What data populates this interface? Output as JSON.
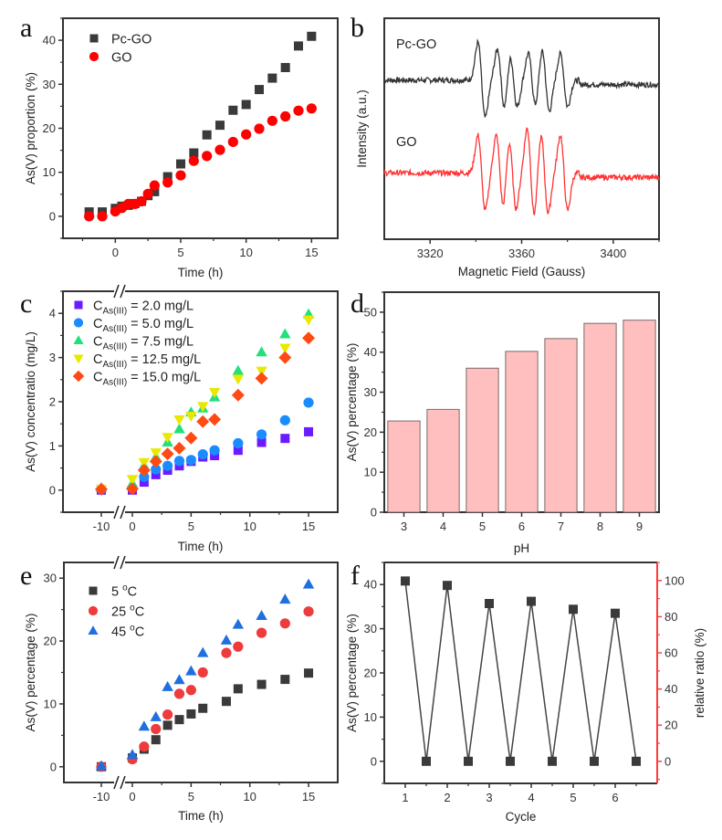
{
  "figure": {
    "panels": [
      "a",
      "b",
      "c",
      "d",
      "e",
      "f"
    ]
  },
  "chart_data": [
    {
      "id": "a",
      "panel_label": "a",
      "type": "scatter",
      "xlabel": "Time (h)",
      "ylabel": "As(V) proportion (%)",
      "xlim": [
        -4,
        17
      ],
      "ylim": [
        -5,
        45
      ],
      "xticks": [
        0,
        5,
        10,
        15
      ],
      "yticks": [
        0,
        10,
        20,
        30,
        40
      ],
      "legend_position": "top-left",
      "series": [
        {
          "name": "Pc-GO",
          "marker": "square",
          "color": "#3a3a3a",
          "x": [
            -2,
            -1,
            0,
            0.5,
            1,
            1.5,
            2,
            2.5,
            3,
            4,
            5,
            6,
            7,
            8,
            9,
            10,
            11,
            12,
            13,
            14,
            15
          ],
          "y": [
            1.0,
            1.0,
            1.8,
            2.3,
            2.5,
            2.9,
            3.4,
            4.7,
            5.6,
            9.0,
            11.9,
            14.4,
            18.5,
            20.7,
            24.1,
            25.4,
            28.8,
            31.4,
            33.8,
            38.7,
            40.9
          ]
        },
        {
          "name": "GO",
          "marker": "circle",
          "color": "#ff0000",
          "x": [
            -2,
            -1,
            0,
            0.5,
            1,
            1.5,
            2,
            2.5,
            3,
            4,
            5,
            6,
            7,
            8,
            9,
            10,
            11,
            12,
            13,
            14,
            15
          ],
          "y": [
            0,
            0,
            1.1,
            1.9,
            2.8,
            2.8,
            3.4,
            5.1,
            7.0,
            7.7,
            9.3,
            12.6,
            13.7,
            15.1,
            16.9,
            18.6,
            19.9,
            21.7,
            22.7,
            24.0,
            24.5
          ]
        }
      ]
    },
    {
      "id": "b",
      "panel_label": "b",
      "type": "line",
      "xlabel": "Magnetic Field (Gauss)",
      "ylabel": "Intensity (a.u.)",
      "xlim": [
        3300,
        3420
      ],
      "xticks": [
        3320,
        3360,
        3400
      ],
      "yticks": [],
      "series": [
        {
          "name": "Pc-GO",
          "color": "#333333",
          "baseline": 0.72,
          "peaks": [
            {
              "x": 3342.5,
              "amp": 0.17
            },
            {
              "x": 3351.0,
              "amp": 0.14
            },
            {
              "x": 3356.5,
              "amp": 0.12
            },
            {
              "x": 3364.5,
              "amp": 0.12
            },
            {
              "x": 3370.5,
              "amp": 0.14
            },
            {
              "x": 3378.5,
              "amp": 0.12
            }
          ]
        },
        {
          "name": "GO",
          "color": "#ff3333",
          "baseline": 0.3,
          "peaks": [
            {
              "x": 3342.5,
              "amp": 0.17
            },
            {
              "x": 3350.5,
              "amp": 0.17
            },
            {
              "x": 3356.0,
              "amp": 0.16
            },
            {
              "x": 3364.0,
              "amp": 0.2
            },
            {
              "x": 3370.0,
              "amp": 0.18
            },
            {
              "x": 3378.5,
              "amp": 0.17
            }
          ]
        }
      ]
    },
    {
      "id": "c",
      "panel_label": "c",
      "type": "scatter",
      "xlabel": "Time (h)",
      "ylabel": "As(V) concentratio (mg/L)",
      "ylim": [
        -0.5,
        4.5
      ],
      "xticks": [
        -10,
        0,
        5,
        10,
        15
      ],
      "yticks": [
        0,
        1,
        2,
        3,
        4
      ],
      "axis_break": true,
      "legend_position": "top-left",
      "series": [
        {
          "name": "C_As(III) = 2.0 mg/L",
          "label_main": "C",
          "label_sub": "As(III)",
          "label_rest": " = 2.0 mg/L",
          "marker": "square",
          "color": "#6a1bff",
          "x": [
            -10,
            0,
            1,
            2,
            3,
            4,
            5,
            6,
            7,
            9,
            11,
            13,
            15
          ],
          "y": [
            0,
            0,
            0.18,
            0.35,
            0.45,
            0.55,
            0.65,
            0.75,
            0.78,
            0.9,
            1.08,
            1.17,
            1.32
          ]
        },
        {
          "name": "C_As(III) = 5.0 mg/L",
          "label_main": "C",
          "label_sub": "As(III)",
          "label_rest": " = 5.0 mg/L",
          "marker": "circle",
          "color": "#1a8cff",
          "x": [
            -10,
            0,
            1,
            2,
            3,
            4,
            5,
            6,
            7,
            9,
            11,
            13,
            15
          ],
          "y": [
            0.02,
            0.05,
            0.3,
            0.47,
            0.55,
            0.66,
            0.68,
            0.81,
            0.9,
            1.06,
            1.26,
            1.58,
            1.98
          ]
        },
        {
          "name": "C_As(III) = 7.5 mg/L",
          "label_main": "C",
          "label_sub": "As(III)",
          "label_rest": " = 7.5 mg/L",
          "marker": "triangle-up",
          "color": "#22e07a",
          "x": [
            -10,
            0,
            1,
            2,
            3,
            4,
            5,
            6,
            7,
            9,
            11,
            13,
            15
          ],
          "y": [
            0.05,
            0.15,
            0.55,
            0.75,
            1.08,
            1.38,
            1.76,
            1.85,
            2.1,
            2.7,
            3.12,
            3.53,
            3.98
          ]
        },
        {
          "name": "C_As(III) = 12.5 mg/L",
          "label_main": "C",
          "label_sub": "As(III)",
          "label_rest": " = 12.5 mg/L",
          "marker": "triangle-down",
          "color": "#e8e800",
          "x": [
            -10,
            0,
            1,
            2,
            3,
            4,
            5,
            6,
            7,
            9,
            11,
            13,
            15
          ],
          "y": [
            0.03,
            0.25,
            0.63,
            0.85,
            1.2,
            1.6,
            1.68,
            1.9,
            2.22,
            2.52,
            2.7,
            3.22,
            3.86
          ]
        },
        {
          "name": "C_As(III) = 15.0 mg/L",
          "label_main": "C",
          "label_sub": "As(III)",
          "label_rest": " = 15.0 mg/L",
          "marker": "diamond",
          "color": "#ff4a14",
          "x": [
            -10,
            0,
            1,
            2,
            3,
            4,
            5,
            6,
            7,
            9,
            11,
            13,
            15
          ],
          "y": [
            0.02,
            0.03,
            0.45,
            0.65,
            0.82,
            0.95,
            1.18,
            1.55,
            1.6,
            2.15,
            2.53,
            3.0,
            3.44
          ]
        }
      ]
    },
    {
      "id": "d",
      "panel_label": "d",
      "type": "bar",
      "xlabel": "pH",
      "ylabel": "As(V) percentage (%)",
      "ylim": [
        0,
        55
      ],
      "yticks": [
        0,
        10,
        20,
        30,
        40,
        50
      ],
      "categories": [
        "3",
        "4",
        "5",
        "6",
        "7",
        "8",
        "9"
      ],
      "values": [
        22.8,
        25.7,
        36.0,
        40.2,
        43.4,
        47.2,
        48.0
      ],
      "bar_color": "#ffbfbf"
    },
    {
      "id": "e",
      "panel_label": "e",
      "type": "scatter",
      "xlabel": "Time (h)",
      "ylabel": "As(V) percentage (%)",
      "ylim": [
        -2.5,
        32.5
      ],
      "xticks": [
        -10,
        0,
        5,
        10,
        15
      ],
      "yticks": [
        0,
        10,
        20,
        30
      ],
      "axis_break": true,
      "legend_position": "top-left",
      "series": [
        {
          "name": "5 °C",
          "label_num": "5 ",
          "label_sup": "o",
          "label_unit": "C",
          "marker": "square",
          "color": "#3a3a3a",
          "x": [
            -10,
            0,
            1,
            2,
            3,
            4,
            5,
            6,
            8,
            9,
            11,
            13,
            15
          ],
          "y": [
            0,
            1.4,
            2.8,
            4.3,
            6.6,
            7.5,
            8.4,
            9.3,
            10.4,
            12.4,
            13.1,
            13.9,
            14.9
          ]
        },
        {
          "name": "25 °C",
          "label_num": "25 ",
          "label_sup": "o",
          "label_unit": "C",
          "marker": "circle",
          "color": "#ee3b3b",
          "x": [
            -10,
            0,
            1,
            2,
            3,
            4,
            5,
            6,
            8,
            9,
            11,
            13,
            15
          ],
          "y": [
            0,
            1.2,
            3.2,
            6.0,
            8.3,
            11.6,
            12.2,
            15.0,
            18.1,
            19.1,
            21.3,
            22.8,
            24.7
          ]
        },
        {
          "name": "45 °C",
          "label_num": "45 ",
          "label_sup": "o",
          "label_unit": "C",
          "marker": "triangle-up",
          "color": "#1f6fe0",
          "x": [
            -10,
            0,
            1,
            2,
            3,
            4,
            5,
            6,
            8,
            9,
            11,
            13,
            15
          ],
          "y": [
            0.1,
            1.9,
            6.4,
            7.9,
            12.7,
            13.8,
            15.2,
            18.1,
            20.1,
            22.6,
            24.0,
            26.6,
            29.0
          ]
        }
      ]
    },
    {
      "id": "f",
      "panel_label": "f",
      "type": "line",
      "xlabel": "Cycle",
      "ylabel": "As(V) percentage (%)",
      "ylabel_right": "relative ratio (%)",
      "xlim": [
        0.5,
        7.0
      ],
      "ylim": [
        -5,
        45
      ],
      "ylim_right": [
        -12.2,
        110
      ],
      "xticks": [
        1,
        2,
        3,
        4,
        5,
        6
      ],
      "yticks": [
        0,
        10,
        20,
        30,
        40
      ],
      "yticks_right": [
        0,
        20,
        40,
        60,
        80,
        100
      ],
      "right_axis_color": "#ff3b3b",
      "series": [
        {
          "name": "As(V) percentage",
          "marker": "square",
          "color": "#3a3a3a",
          "x": [
            1,
            1.5,
            2,
            2.5,
            3,
            3.5,
            4,
            4.5,
            5,
            5.5,
            6,
            6.5
          ],
          "y": [
            40.8,
            0,
            39.8,
            0,
            35.7,
            0,
            36.2,
            0,
            34.4,
            0,
            33.5,
            0
          ]
        }
      ]
    }
  ]
}
